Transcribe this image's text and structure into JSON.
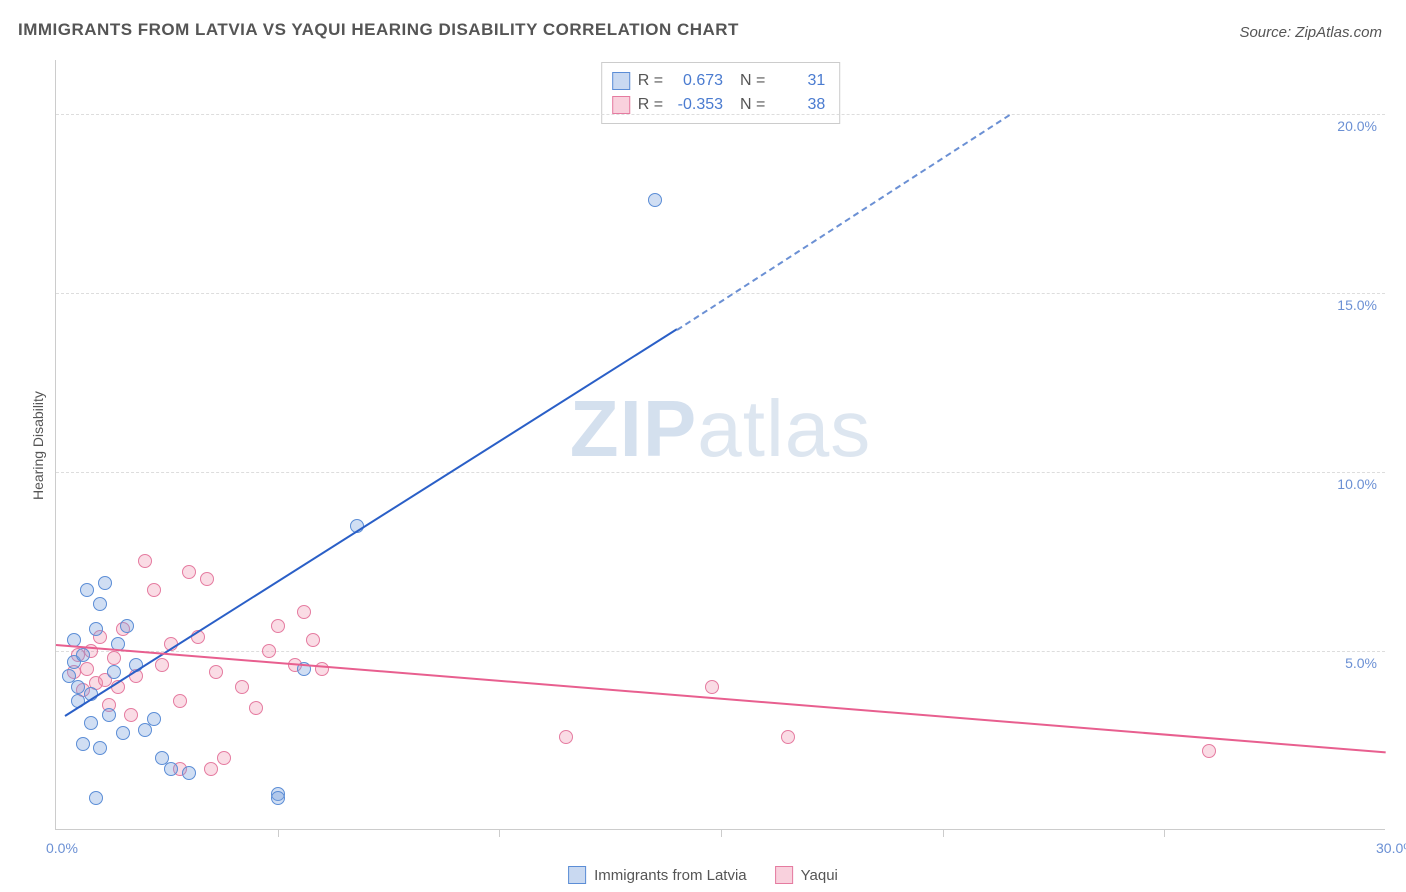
{
  "title": "IMMIGRANTS FROM LATVIA VS YAQUI HEARING DISABILITY CORRELATION CHART",
  "source": "Source: ZipAtlas.com",
  "watermark_a": "ZIP",
  "watermark_b": "atlas",
  "chart": {
    "type": "scatter",
    "y_axis_title": "Hearing Disability",
    "xlim": [
      0,
      30
    ],
    "ylim": [
      0,
      21.5
    ],
    "y_ticks": [
      {
        "v": 5.0,
        "label": "5.0%"
      },
      {
        "v": 10.0,
        "label": "10.0%"
      },
      {
        "v": 15.0,
        "label": "15.0%"
      },
      {
        "v": 20.0,
        "label": "20.0%"
      }
    ],
    "x_ticks": [
      {
        "v": 0.0,
        "label": "0.0%"
      },
      {
        "v": 30.0,
        "label": "30.0%"
      }
    ],
    "x_tick_positions_unlabeled": [
      5,
      10,
      15,
      20,
      25
    ],
    "grid_color": "#dddddd",
    "background_color": "#ffffff",
    "stats": [
      {
        "series": "blue",
        "R": "0.673",
        "N": "31"
      },
      {
        "series": "pink",
        "R": "-0.353",
        "N": "38"
      }
    ],
    "legend": [
      {
        "series": "blue",
        "label": "Immigrants from Latvia"
      },
      {
        "series": "pink",
        "label": "Yaqui"
      }
    ],
    "series": {
      "blue": {
        "color": "#5b8dd6",
        "fill": "rgba(120,160,220,0.35)",
        "trend_color": "#2a5fc7",
        "trend": {
          "x1": 0.2,
          "y1": 3.2,
          "x2": 14.0,
          "y2": 14.0,
          "x2_ext": 21.5,
          "y2_ext": 20.0
        },
        "points": [
          [
            0.3,
            4.3
          ],
          [
            0.4,
            4.7
          ],
          [
            0.4,
            5.3
          ],
          [
            0.5,
            3.6
          ],
          [
            0.5,
            4.0
          ],
          [
            0.6,
            4.9
          ],
          [
            0.7,
            6.7
          ],
          [
            0.8,
            3.0
          ],
          [
            0.8,
            3.8
          ],
          [
            0.9,
            5.6
          ],
          [
            1.0,
            6.3
          ],
          [
            1.1,
            6.9
          ],
          [
            1.2,
            3.2
          ],
          [
            1.3,
            4.4
          ],
          [
            1.4,
            5.2
          ],
          [
            1.5,
            2.7
          ],
          [
            1.6,
            5.7
          ],
          [
            1.8,
            4.6
          ],
          [
            2.0,
            2.8
          ],
          [
            2.2,
            3.1
          ],
          [
            2.4,
            2.0
          ],
          [
            2.6,
            1.7
          ],
          [
            1.0,
            2.3
          ],
          [
            0.6,
            2.4
          ],
          [
            3.0,
            1.6
          ],
          [
            5.0,
            1.0
          ],
          [
            5.6,
            4.5
          ],
          [
            6.8,
            8.5
          ],
          [
            5.0,
            0.9
          ],
          [
            13.5,
            17.6
          ],
          [
            0.9,
            0.9
          ]
        ]
      },
      "pink": {
        "color": "#e57ba0",
        "fill": "rgba(240,140,170,0.30)",
        "trend_color": "#e85f8f",
        "trend": {
          "x1": 0.0,
          "y1": 5.2,
          "x2": 30.0,
          "y2": 2.2
        },
        "points": [
          [
            0.4,
            4.4
          ],
          [
            0.5,
            4.9
          ],
          [
            0.6,
            3.9
          ],
          [
            0.7,
            4.5
          ],
          [
            0.8,
            5.0
          ],
          [
            0.9,
            4.1
          ],
          [
            1.0,
            5.4
          ],
          [
            1.1,
            4.2
          ],
          [
            1.2,
            3.5
          ],
          [
            1.3,
            4.8
          ],
          [
            1.4,
            4.0
          ],
          [
            1.5,
            5.6
          ],
          [
            1.7,
            3.2
          ],
          [
            1.8,
            4.3
          ],
          [
            2.0,
            7.5
          ],
          [
            2.2,
            6.7
          ],
          [
            2.4,
            4.6
          ],
          [
            2.6,
            5.2
          ],
          [
            2.8,
            3.6
          ],
          [
            3.0,
            7.2
          ],
          [
            3.2,
            5.4
          ],
          [
            3.4,
            7.0
          ],
          [
            3.6,
            4.4
          ],
          [
            3.8,
            2.0
          ],
          [
            4.2,
            4.0
          ],
          [
            4.5,
            3.4
          ],
          [
            4.8,
            5.0
          ],
          [
            5.0,
            5.7
          ],
          [
            5.4,
            4.6
          ],
          [
            5.6,
            6.1
          ],
          [
            5.8,
            5.3
          ],
          [
            6.0,
            4.5
          ],
          [
            11.5,
            2.6
          ],
          [
            14.8,
            4.0
          ],
          [
            16.5,
            2.6
          ],
          [
            26.0,
            2.2
          ],
          [
            2.8,
            1.7
          ],
          [
            3.5,
            1.7
          ]
        ]
      }
    }
  }
}
